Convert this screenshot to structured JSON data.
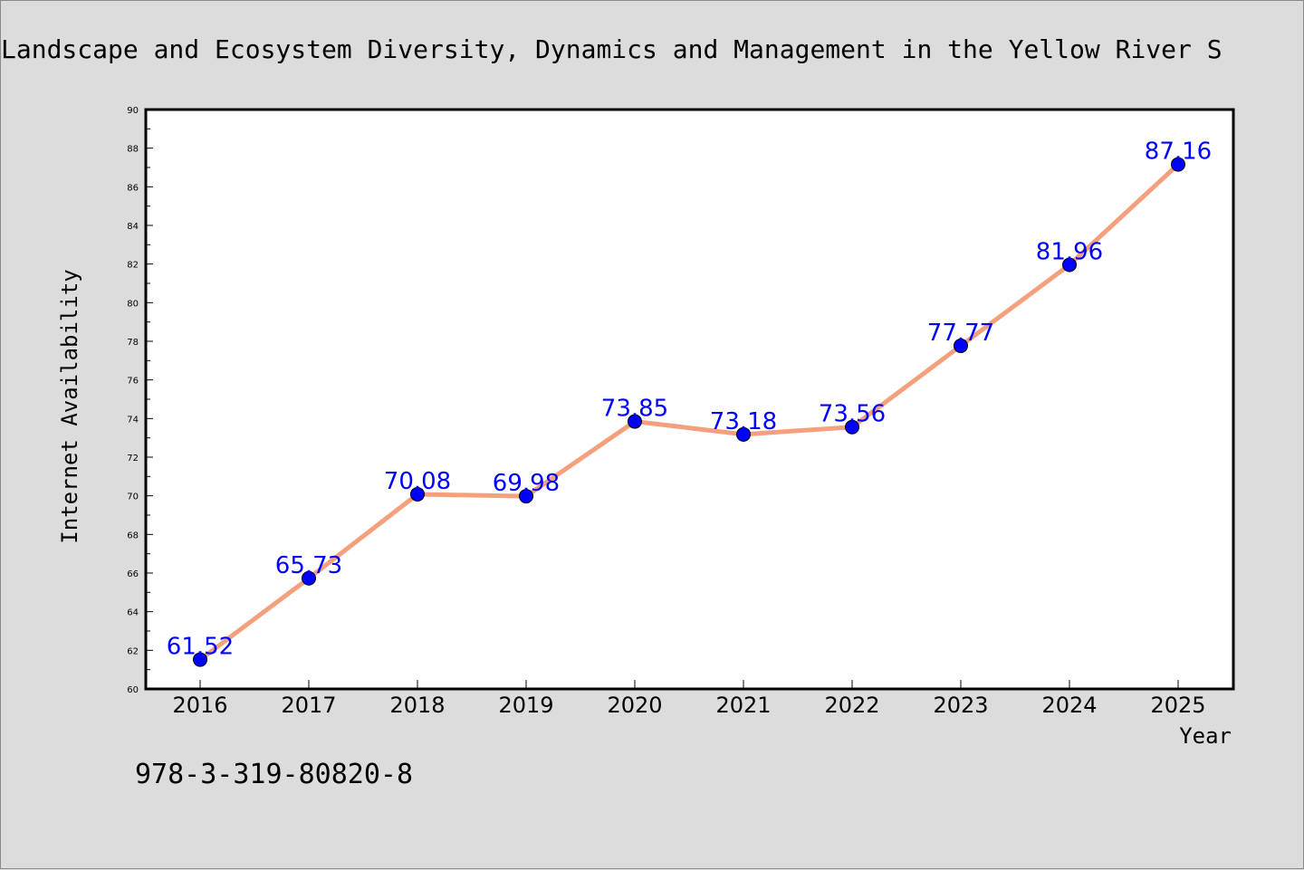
{
  "colors": {
    "background": "#dcdcdc",
    "plot_background": "#ffffff",
    "line": "#f4a07c",
    "marker": "#0000ff",
    "data_label": "#0000ff"
  },
  "footer": {
    "text": "978-3-319-80820-8"
  },
  "chart_data": {
    "type": "line",
    "title": "Landscape and Ecosystem Diversity, Dynamics and Management in the Yellow River S",
    "xlabel": "Year",
    "ylabel": "Internet Availability",
    "categories": [
      "2016",
      "2017",
      "2018",
      "2019",
      "2020",
      "2021",
      "2022",
      "2023",
      "2024",
      "2025"
    ],
    "series": [
      {
        "values": [
          61.52,
          65.73,
          70.08,
          69.98,
          73.85,
          73.18,
          73.56,
          77.77,
          81.96,
          87.16
        ],
        "labels": [
          "61.52",
          "65.73",
          "70.08",
          "69.98",
          "73.85",
          "73.18",
          "73.56",
          "77.77",
          "81.96",
          "87.16"
        ]
      }
    ],
    "ylim": [
      60,
      90
    ],
    "y_ticks": [
      "60",
      "62",
      "64",
      "66",
      "68",
      "70",
      "72",
      "74",
      "76",
      "78",
      "80",
      "82",
      "84",
      "86",
      "88",
      "90"
    ],
    "grid": false,
    "legend": "none"
  }
}
